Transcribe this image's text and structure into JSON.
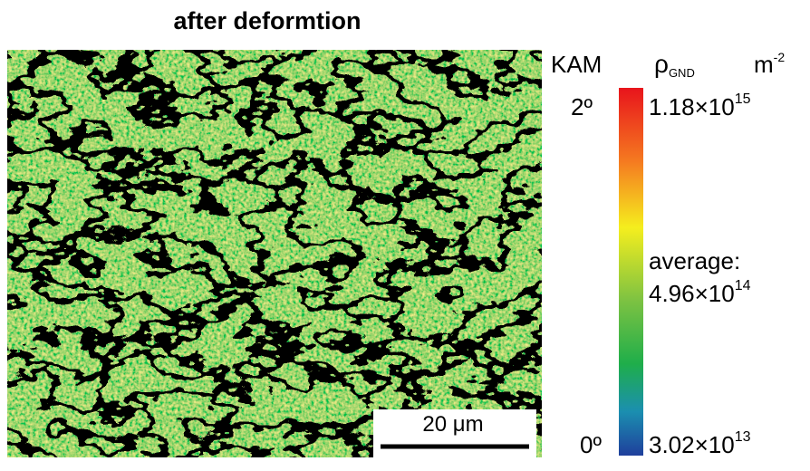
{
  "title": "after deformtion",
  "colorbar": {
    "kam_label": "KAM",
    "density_label": {
      "symbol": "ρ",
      "subscript": "GND"
    },
    "unit": {
      "base": "m",
      "exponent": "-2"
    },
    "kam_max": "2º",
    "kam_min": "0º",
    "max_label": {
      "base": "1.18×10",
      "exponent": "15"
    },
    "average_label": "average:",
    "average_value": {
      "base": "4.96×10",
      "exponent": "14"
    },
    "min_label": {
      "base": "3.02×10",
      "exponent": "13"
    }
  },
  "scale_bar": "20 μm"
}
